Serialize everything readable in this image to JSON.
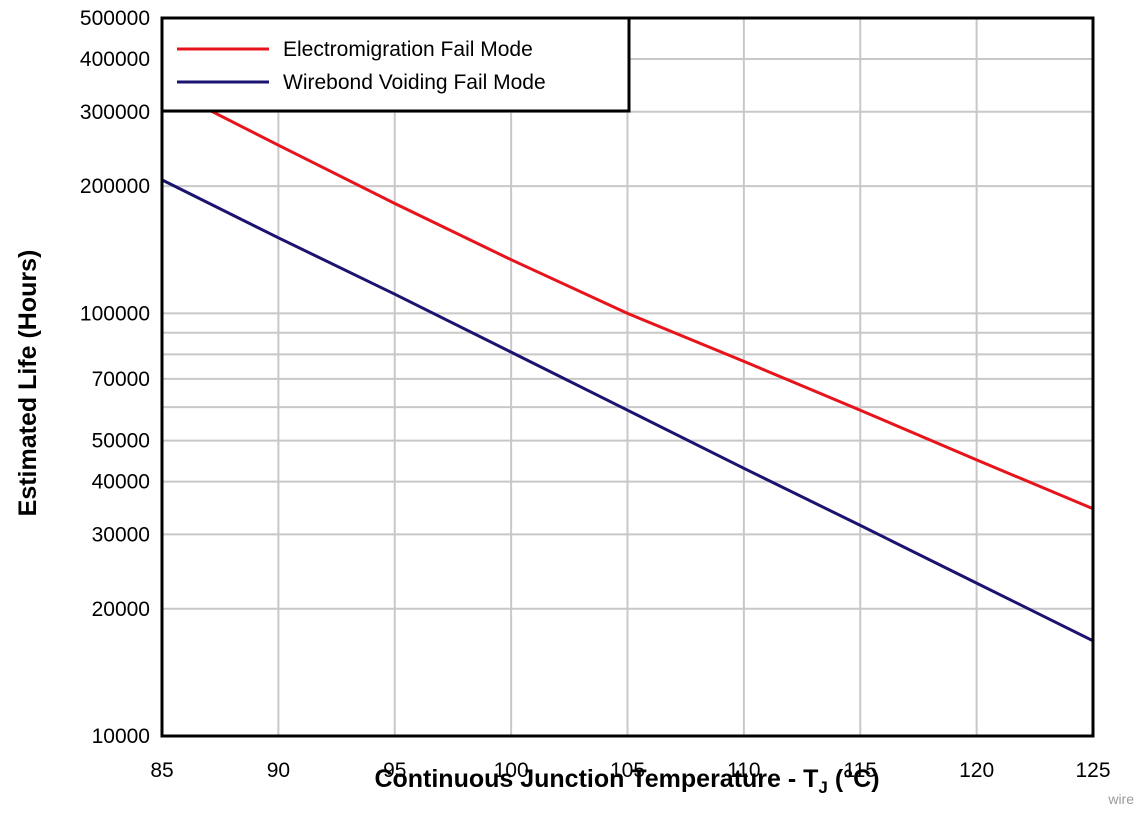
{
  "chart_data": {
    "type": "line",
    "xlabel": "Continuous  Junction Temperature - T",
    "xlabel_sub": "J",
    "xlabel_tail": " (°C)",
    "ylabel": "Estimated Life (Hours)",
    "xlim": [
      85,
      125
    ],
    "ylim": [
      10000,
      500000
    ],
    "y_scale": "log",
    "x_ticks": [
      "85",
      "90",
      "95",
      "100",
      "105",
      "110",
      "115",
      "120",
      "125"
    ],
    "y_ticks": [
      {
        "value": 10000,
        "label": "10000"
      },
      {
        "value": 20000,
        "label": "20000"
      },
      {
        "value": 30000,
        "label": "30000"
      },
      {
        "value": 40000,
        "label": "40000"
      },
      {
        "value": 50000,
        "label": "50000"
      },
      {
        "value": 70000,
        "label": "70000"
      },
      {
        "value": 100000,
        "label": "100000"
      },
      {
        "value": 200000,
        "label": "200000"
      },
      {
        "value": 300000,
        "label": "300000"
      },
      {
        "value": 400000,
        "label": "400000"
      },
      {
        "value": 500000,
        "label": "500000"
      }
    ],
    "y_minor_grid": [
      60000,
      80000,
      90000
    ],
    "grid": true,
    "legend_position": "top-left",
    "series": [
      {
        "name": "Electromigration Fail Mode",
        "color": "#e8141c",
        "x": [
          85,
          90,
          95,
          100,
          105,
          110,
          115,
          120,
          125
        ],
        "y": [
          345000,
          250000,
          182000,
          134000,
          100000,
          77000,
          59000,
          45000,
          34500
        ]
      },
      {
        "name": "Wirebond Voiding Fail Mode",
        "color": "#1a1470",
        "x": [
          85,
          90,
          95,
          100,
          105,
          110,
          115,
          120,
          125
        ],
        "y": [
          207000,
          151000,
          111000,
          81000,
          59000,
          43000,
          31500,
          23000,
          16800
        ]
      }
    ]
  },
  "footer_note": "wire"
}
